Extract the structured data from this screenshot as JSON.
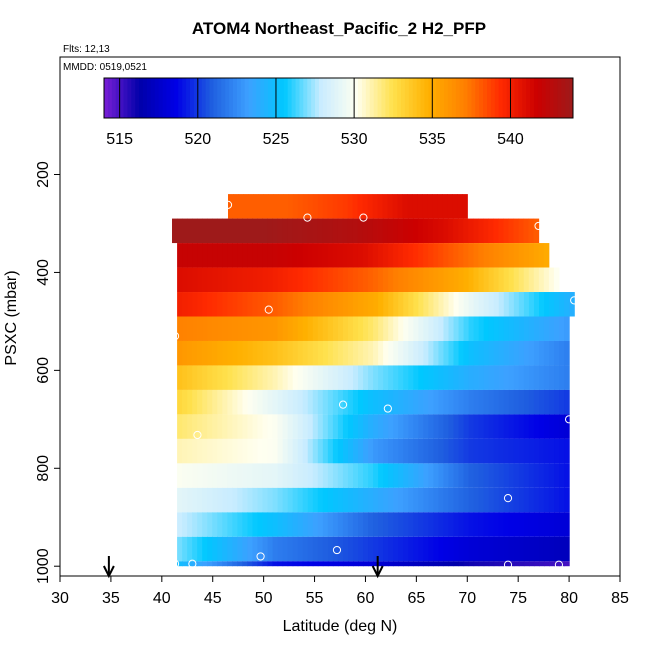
{
  "chart_data": {
    "type": "heatmap",
    "title": "ATOM4 Northeast_Pacific_2 H2_PFP",
    "annotations": [
      "Flts: 12,13",
      "MMDD: 0519,0521"
    ],
    "xlabel": "Latitude (deg N)",
    "ylabel": "PSXC (mbar)",
    "xlim": [
      30,
      85
    ],
    "ylim": [
      1020,
      -40
    ],
    "x_ticks": [
      30,
      35,
      40,
      45,
      50,
      55,
      60,
      65,
      70,
      75,
      80,
      85
    ],
    "y_ticks": [
      200,
      400,
      600,
      800,
      1000
    ],
    "colorbar": {
      "range": [
        514,
        544
      ],
      "ticks": [
        515,
        520,
        525,
        530,
        535,
        540
      ],
      "palette": [
        "#7a1fd6",
        "#0000aa",
        "#0000e6",
        "#1f5fe0",
        "#3da0ff",
        "#00c8ff",
        "#c8ecff",
        "#fffff0",
        "#ffe14d",
        "#ffb000",
        "#ff8000",
        "#ff2a00",
        "#cc0000",
        "#9e1a1a"
      ]
    },
    "bands": [
      {
        "pressure": [
          240,
          290
        ],
        "lat": [
          46.5,
          70
        ],
        "values": [
          538,
          538,
          539,
          541,
          541
        ]
      },
      {
        "pressure": [
          290,
          340
        ],
        "lat": [
          41,
          77
        ],
        "values": [
          544,
          544,
          543,
          541,
          538
        ]
      },
      {
        "pressure": [
          340,
          390
        ],
        "lat": [
          41.5,
          78
        ],
        "values": [
          542,
          542,
          541,
          538,
          535
        ]
      },
      {
        "pressure": [
          390,
          440
        ],
        "lat": [
          41.5,
          79
        ],
        "values": [
          541,
          540,
          538,
          535,
          530
        ]
      },
      {
        "pressure": [
          440,
          490
        ],
        "lat": [
          41.5,
          80.5
        ],
        "values": [
          540,
          538,
          535,
          529,
          524
        ]
      },
      {
        "pressure": [
          490,
          540
        ],
        "lat": [
          41.5,
          80
        ],
        "values": [
          537,
          536,
          532,
          526,
          523
        ]
      },
      {
        "pressure": [
          540,
          590
        ],
        "lat": [
          41.5,
          80
        ],
        "values": [
          536,
          534,
          531,
          525,
          522
        ]
      },
      {
        "pressure": [
          590,
          640
        ],
        "lat": [
          41.5,
          80
        ],
        "values": [
          534,
          531,
          527,
          524,
          522
        ]
      },
      {
        "pressure": [
          640,
          690
        ],
        "lat": [
          41.5,
          80
        ],
        "values": [
          533,
          529,
          525,
          522,
          520
        ]
      },
      {
        "pressure": [
          690,
          740
        ],
        "lat": [
          41.5,
          80
        ],
        "values": [
          532,
          530,
          524,
          520,
          518
        ]
      },
      {
        "pressure": [
          740,
          790
        ],
        "lat": [
          41.5,
          80
        ],
        "values": [
          531,
          530,
          523,
          520,
          519
        ]
      },
      {
        "pressure": [
          790,
          840
        ],
        "lat": [
          41.5,
          80
        ],
        "values": [
          530,
          529,
          526,
          521,
          519
        ]
      },
      {
        "pressure": [
          840,
          890
        ],
        "lat": [
          41.5,
          80
        ],
        "values": [
          529,
          527,
          524,
          521,
          519
        ]
      },
      {
        "pressure": [
          890,
          940
        ],
        "lat": [
          41.5,
          80
        ],
        "values": [
          528,
          525,
          521,
          519,
          518
        ]
      },
      {
        "pressure": [
          940,
          990
        ],
        "lat": [
          41.5,
          80
        ],
        "values": [
          527,
          522,
          520,
          518,
          517
        ]
      },
      {
        "pressure": [
          990,
          1000
        ],
        "lat": [
          41.5,
          80
        ],
        "values": [
          525,
          519,
          518,
          516,
          515
        ]
      }
    ],
    "samples": [
      {
        "lat": 69.8,
        "pressure": 226
      },
      {
        "lat": 46.5,
        "pressure": 262
      },
      {
        "lat": 41,
        "pressure": 262
      },
      {
        "lat": 54.3,
        "pressure": 288
      },
      {
        "lat": 59.8,
        "pressure": 288
      },
      {
        "lat": 77,
        "pressure": 305
      },
      {
        "lat": 80.5,
        "pressure": 457
      },
      {
        "lat": 50.5,
        "pressure": 476
      },
      {
        "lat": 41.3,
        "pressure": 530
      },
      {
        "lat": 57.8,
        "pressure": 670
      },
      {
        "lat": 62.2,
        "pressure": 678
      },
      {
        "lat": 80,
        "pressure": 700
      },
      {
        "lat": 43.5,
        "pressure": 732
      },
      {
        "lat": 74,
        "pressure": 861
      },
      {
        "lat": 57.2,
        "pressure": 967
      },
      {
        "lat": 49.7,
        "pressure": 980
      },
      {
        "lat": 41.3,
        "pressure": 995
      },
      {
        "lat": 43,
        "pressure": 995
      },
      {
        "lat": 74,
        "pressure": 997
      },
      {
        "lat": 79,
        "pressure": 997
      }
    ],
    "arrows": [
      34.8,
      61.2
    ]
  }
}
